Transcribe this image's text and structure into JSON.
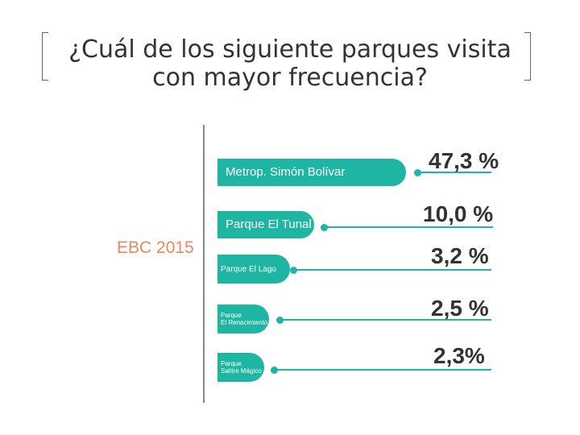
{
  "header": {
    "title": "¿Cuál de los siguiente parques visita con mayor frecuencia?",
    "title_line1": "¿Cuál de los siguiente parques visita",
    "title_line2": "con mayor frecuencia?"
  },
  "subtitle": "EBC 2015",
  "colors": {
    "bar": "#1fb5a3",
    "accent": "#e8895a",
    "text": "#333333"
  },
  "chart_data": {
    "type": "bar",
    "orientation": "horizontal",
    "categories": [
      "Metrop. Simón Bolívar",
      "Parque El Tunal",
      "Parque El Lago",
      "Parque El Renacimiento",
      "Parque Salitre Mágico"
    ],
    "values": [
      47.3,
      10.0,
      3.2,
      2.5,
      2.3
    ],
    "unit": "%",
    "data_labels": [
      "47,3 %",
      "10,0 %",
      "3,2 %",
      "2,5 %",
      "2,3%"
    ]
  }
}
